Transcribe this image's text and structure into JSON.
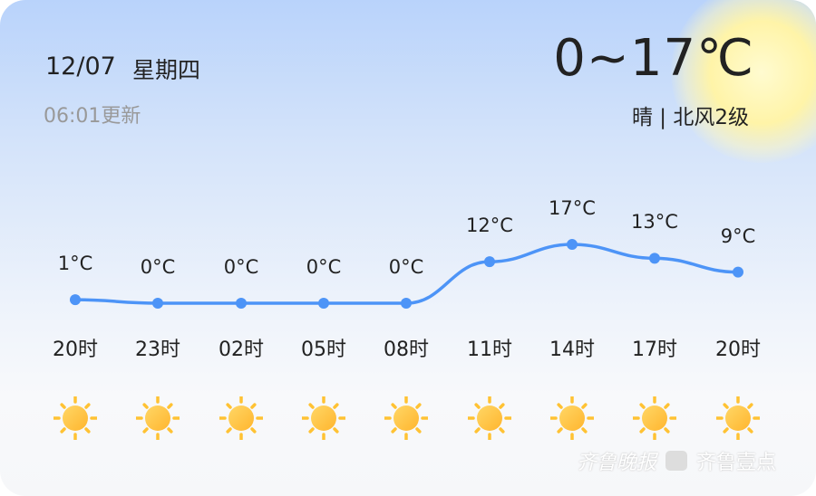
{
  "header": {
    "date": "12/07",
    "weekday": "星期四",
    "updated": "06:01更新",
    "temp_range": "0~17℃",
    "condition": "晴 | 北风2级"
  },
  "forecast": [
    {
      "time": "20时",
      "temp": 1,
      "temp_label": "1°C",
      "icon": "sun-icon"
    },
    {
      "time": "23时",
      "temp": 0,
      "temp_label": "0°C",
      "icon": "sun-icon"
    },
    {
      "time": "02时",
      "temp": 0,
      "temp_label": "0°C",
      "icon": "sun-icon"
    },
    {
      "time": "05时",
      "temp": 0,
      "temp_label": "0°C",
      "icon": "sun-icon"
    },
    {
      "time": "08时",
      "temp": 0,
      "temp_label": "0°C",
      "icon": "sun-icon"
    },
    {
      "time": "11时",
      "temp": 12,
      "temp_label": "12°C",
      "icon": "sun-icon"
    },
    {
      "time": "14时",
      "temp": 17,
      "temp_label": "17°C",
      "icon": "sun-icon"
    },
    {
      "time": "17时",
      "temp": 13,
      "temp_label": "13°C",
      "icon": "sun-icon"
    },
    {
      "time": "20时",
      "temp": 9,
      "temp_label": "9°C",
      "icon": "sun-icon"
    }
  ],
  "colors": {
    "line": "#4d94f7",
    "sun": "#ffc233"
  },
  "watermark": {
    "brand1": "齐鲁晚报",
    "brand2": "齐鲁壹点"
  }
}
